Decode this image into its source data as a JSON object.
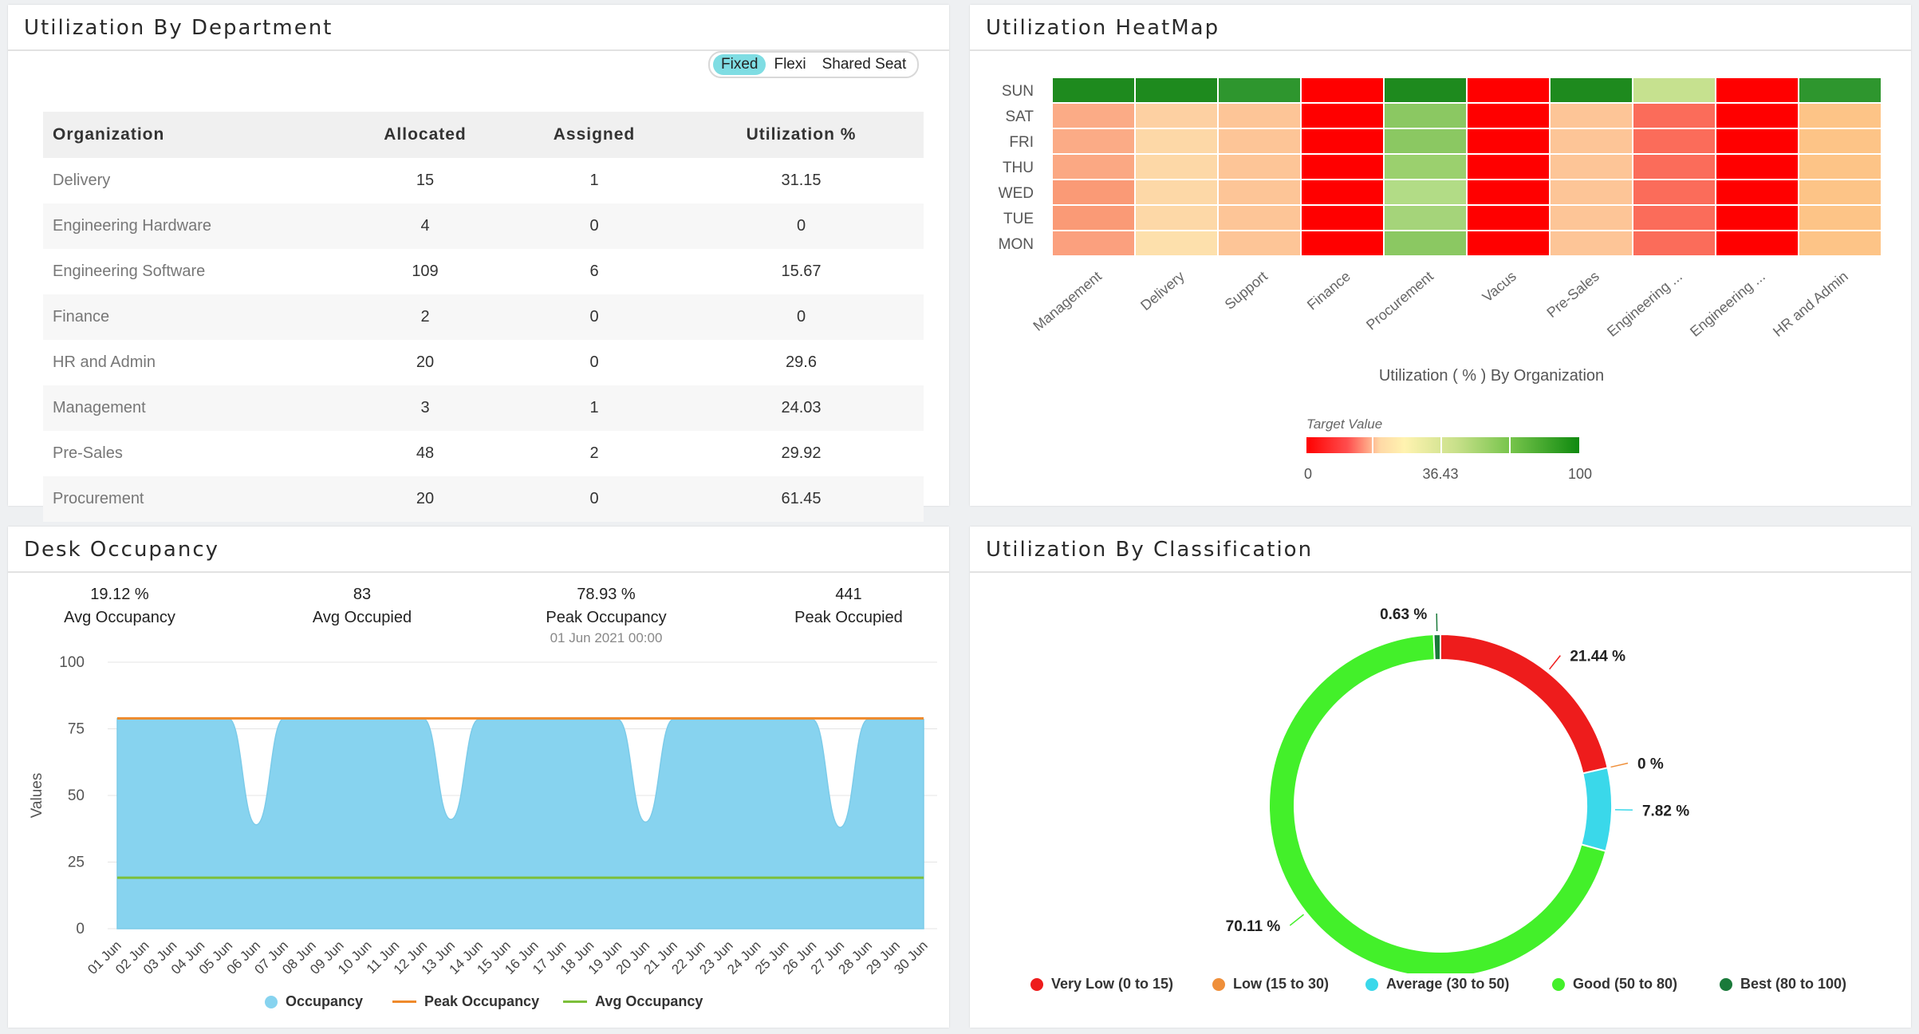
{
  "dept": {
    "title": "Utilization By Department",
    "toggle": [
      "Fixed",
      "Flexi",
      "Shared Seat"
    ],
    "columns": [
      "Organization",
      "Allocated",
      "Assigned",
      "Utilization %"
    ],
    "rows": [
      [
        "Delivery",
        "15",
        "1",
        "31.15"
      ],
      [
        "Engineering Hardware",
        "4",
        "0",
        "0"
      ],
      [
        "Engineering Software",
        "109",
        "6",
        "15.67"
      ],
      [
        "Finance",
        "2",
        "0",
        "0"
      ],
      [
        "HR and Admin",
        "20",
        "0",
        "29.6"
      ],
      [
        "Management",
        "3",
        "1",
        "24.03"
      ],
      [
        "Pre-Sales",
        "48",
        "2",
        "29.92"
      ],
      [
        "Procurement",
        "20",
        "0",
        "61.45"
      ]
    ]
  },
  "heatmap": {
    "title": "Utilization HeatMap",
    "days": [
      "SUN",
      "SAT",
      "FRI",
      "THU",
      "WED",
      "TUE",
      "MON"
    ],
    "orgs": [
      "Management",
      "Delivery",
      "Support",
      "Finance",
      "Procurement",
      "Vacus",
      "Pre-Sales",
      "Engineering ...",
      "Engineering ...",
      "HR and Admin"
    ],
    "colors": [
      [
        "#1e8a1e",
        "#fbab86",
        "#fbab86",
        "#fba883",
        "#fa9a76",
        "#fa9a76",
        "#fba07e"
      ],
      [
        "#1e8a1e",
        "#fdd0a2",
        "#fdd8a7",
        "#fdd8a7",
        "#fdd8a7",
        "#fdd8a7",
        "#fde0ac"
      ],
      [
        "#2e962e",
        "#fdc597",
        "#fdc597",
        "#fdc597",
        "#fdc597",
        "#fdc597",
        "#fdc597"
      ],
      [
        "#ff0000",
        "#ff0000",
        "#ff0000",
        "#ff0000",
        "#ff0000",
        "#ff0000",
        "#ff0000"
      ],
      [
        "#1e8a1e",
        "#8bc862",
        "#8bc862",
        "#9bd06e",
        "#b2dc86",
        "#a5d47a",
        "#8bc862"
      ],
      [
        "#ff0000",
        "#ff0000",
        "#ff0000",
        "#ff0000",
        "#ff0000",
        "#ff0000",
        "#ff0000"
      ],
      [
        "#1e8a1e",
        "#fdc597",
        "#fdc597",
        "#fdc597",
        "#fdc597",
        "#fdc597",
        "#fdc597"
      ],
      [
        "#c6e18f",
        "#fb6c5a",
        "#fb6c5a",
        "#fb6c5a",
        "#fb6c5a",
        "#fb6c5a",
        "#fb6c5a"
      ],
      [
        "#ff0000",
        "#ff0000",
        "#ff0000",
        "#ff0000",
        "#ff0000",
        "#ff0000",
        "#ff0000"
      ],
      [
        "#2e962e",
        "#fdc487",
        "#fdc487",
        "#fdc487",
        "#fdc487",
        "#fdc487",
        "#fdc487"
      ]
    ],
    "xlabel": "Utilization ( % ) By Organization",
    "legend_title": "Target Value",
    "legend_ticks": [
      "0",
      "36.43",
      "100"
    ]
  },
  "occupancy": {
    "title": "Desk Occupancy",
    "stats": [
      {
        "value": "19.12 %",
        "label": "Avg Occupancy",
        "sub": ""
      },
      {
        "value": "83",
        "label": "Avg Occupied",
        "sub": ""
      },
      {
        "value": "78.93 %",
        "label": "Peak Occupancy",
        "sub": "01 Jun 2021 00:00"
      },
      {
        "value": "441",
        "label": "Peak Occupied",
        "sub": ""
      }
    ],
    "ylabel": "Values",
    "yticks": [
      "0",
      "25",
      "50",
      "75",
      "100"
    ],
    "legend": [
      "Occupancy",
      "Peak Occupancy",
      "Avg Occupancy"
    ],
    "colors": {
      "occupancy": "#87d3ef",
      "peak": "#ef8a2b",
      "avg": "#7cbf3a"
    }
  },
  "classification": {
    "title": "Utilization By Classification",
    "legend": [
      "Very Low (0 to 15)",
      "Low (15 to 30)",
      "Average (30 to 50)",
      "Good (50 to 80)",
      "Best (80 to 100)"
    ],
    "colors": [
      "#ee1c1c",
      "#ef8f3a",
      "#3ad8ea",
      "#43f02a",
      "#1a7a3a"
    ]
  },
  "chart_data": [
    {
      "type": "area",
      "title": "",
      "ylabel": "Values",
      "ylim": [
        0,
        100
      ],
      "x": [
        "01 Jun",
        "02 Jun",
        "03 Jun",
        "04 Jun",
        "05 Jun",
        "06 Jun",
        "07 Jun",
        "08 Jun",
        "09 Jun",
        "10 Jun",
        "11 Jun",
        "12 Jun",
        "13 Jun",
        "14 Jun",
        "15 Jun",
        "16 Jun",
        "17 Jun",
        "18 Jun",
        "19 Jun",
        "20 Jun",
        "21 Jun",
        "22 Jun",
        "23 Jun",
        "24 Jun",
        "25 Jun",
        "26 Jun",
        "27 Jun",
        "28 Jun",
        "29 Jun",
        "30 Jun"
      ],
      "series": [
        {
          "name": "Occupancy",
          "values": [
            78.9,
            78.9,
            78.9,
            78.9,
            78.9,
            39,
            78.9,
            78.9,
            78.9,
            78.9,
            78.9,
            78.9,
            41,
            78.5,
            78.5,
            78.5,
            78.5,
            78.5,
            78.5,
            40,
            78.5,
            78.5,
            78.5,
            78.5,
            78.5,
            78.5,
            38,
            78.5,
            78.5,
            78.5
          ]
        },
        {
          "name": "Peak Occupancy",
          "values": [
            78.93,
            78.93,
            78.93,
            78.93,
            78.93,
            78.93,
            78.93,
            78.93,
            78.93,
            78.93,
            78.93,
            78.93,
            78.93,
            78.93,
            78.93,
            78.93,
            78.93,
            78.93,
            78.93,
            78.93,
            78.93,
            78.93,
            78.93,
            78.93,
            78.93,
            78.93,
            78.93,
            78.93,
            78.93,
            78.93
          ]
        },
        {
          "name": "Avg Occupancy",
          "values": [
            19.12,
            19.12,
            19.12,
            19.12,
            19.12,
            19.12,
            19.12,
            19.12,
            19.12,
            19.12,
            19.12,
            19.12,
            19.12,
            19.12,
            19.12,
            19.12,
            19.12,
            19.12,
            19.12,
            19.12,
            19.12,
            19.12,
            19.12,
            19.12,
            19.12,
            19.12,
            19.12,
            19.12,
            19.12,
            19.12
          ]
        }
      ]
    },
    {
      "type": "pie",
      "title": "",
      "categories": [
        "Very Low (0 to 15)",
        "Low (15 to 30)",
        "Average (30 to 50)",
        "Good (50 to 80)",
        "Best (80 to 100)"
      ],
      "values": [
        21.44,
        0,
        7.82,
        70.11,
        0.63
      ],
      "labels": [
        "21.44 %",
        "0 %",
        "7.82 %",
        "70.11 %",
        "0.63 %"
      ]
    }
  ]
}
